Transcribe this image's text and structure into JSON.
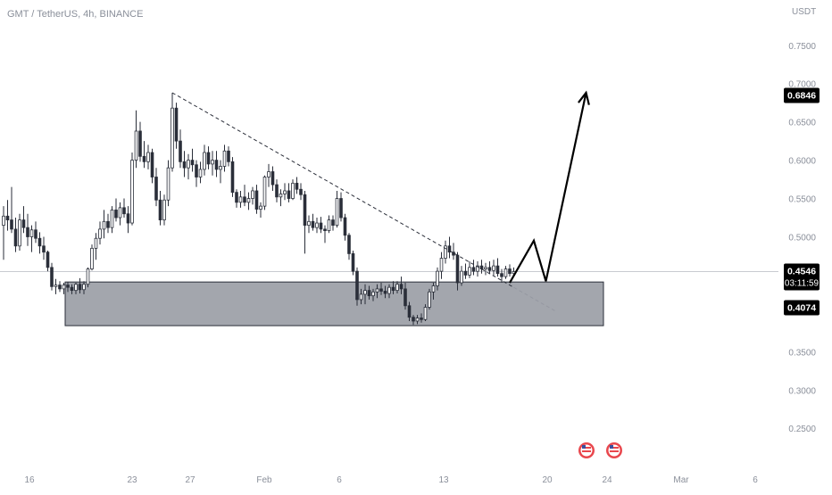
{
  "chart_data": {
    "type": "candlestick",
    "title": "GMT / TetherUS, 4h, BINANCE",
    "currency": "USDT",
    "y_ticks": [
      "0.2500",
      "0.3000",
      "0.3500",
      "0.5000",
      "0.5500",
      "0.6000",
      "0.6500",
      "0.7000",
      "0.7500"
    ],
    "y_tick_values": [
      0.25,
      0.3,
      0.35,
      0.5,
      0.55,
      0.6,
      0.65,
      0.7,
      0.75
    ],
    "x_ticks": [
      "16",
      "23",
      "27",
      "Feb",
      "6",
      "13",
      "20",
      "24",
      "Mar",
      "6"
    ],
    "ylim": [
      0.213,
      0.78
    ],
    "price_labels": {
      "target": {
        "text": "0.6846",
        "value": 0.6846
      },
      "current": {
        "text": "0.4546",
        "value": 0.4546,
        "countdown": "03:11:59"
      },
      "support": {
        "text": "0.4074",
        "value": 0.4074
      }
    },
    "support_zone": {
      "top": 0.441,
      "bottom": 0.384
    },
    "candles": [
      [
        0.515,
        0.54,
        0.47,
        0.527
      ],
      [
        0.527,
        0.548,
        0.508,
        0.522
      ],
      [
        0.522,
        0.565,
        0.505,
        0.51
      ],
      [
        0.51,
        0.525,
        0.48,
        0.488
      ],
      [
        0.488,
        0.53,
        0.482,
        0.522
      ],
      [
        0.522,
        0.54,
        0.505,
        0.512
      ],
      [
        0.512,
        0.53,
        0.488,
        0.5
      ],
      [
        0.5,
        0.515,
        0.48,
        0.509
      ],
      [
        0.509,
        0.52,
        0.492,
        0.498
      ],
      [
        0.498,
        0.506,
        0.478,
        0.488
      ],
      [
        0.488,
        0.5,
        0.47,
        0.48
      ],
      [
        0.48,
        0.482,
        0.455,
        0.46
      ],
      [
        0.46,
        0.466,
        0.43,
        0.435
      ],
      [
        0.435,
        0.445,
        0.425,
        0.437
      ],
      [
        0.437,
        0.442,
        0.428,
        0.432
      ],
      [
        0.432,
        0.44,
        0.425,
        0.437
      ],
      [
        0.437,
        0.441,
        0.428,
        0.434
      ],
      [
        0.434,
        0.438,
        0.425,
        0.43
      ],
      [
        0.43,
        0.44,
        0.425,
        0.438
      ],
      [
        0.438,
        0.446,
        0.426,
        0.431
      ],
      [
        0.431,
        0.442,
        0.425,
        0.438
      ],
      [
        0.438,
        0.46,
        0.434,
        0.458
      ],
      [
        0.458,
        0.49,
        0.456,
        0.485
      ],
      [
        0.485,
        0.505,
        0.47,
        0.498
      ],
      [
        0.498,
        0.52,
        0.49,
        0.51
      ],
      [
        0.51,
        0.535,
        0.498,
        0.52
      ],
      [
        0.52,
        0.53,
        0.505,
        0.512
      ],
      [
        0.512,
        0.54,
        0.505,
        0.535
      ],
      [
        0.535,
        0.55,
        0.52,
        0.525
      ],
      [
        0.525,
        0.545,
        0.515,
        0.538
      ],
      [
        0.538,
        0.55,
        0.525,
        0.53
      ],
      [
        0.53,
        0.54,
        0.505,
        0.518
      ],
      [
        0.518,
        0.61,
        0.515,
        0.6
      ],
      [
        0.6,
        0.665,
        0.59,
        0.638
      ],
      [
        0.638,
        0.65,
        0.598,
        0.605
      ],
      [
        0.605,
        0.625,
        0.59,
        0.598
      ],
      [
        0.598,
        0.62,
        0.588,
        0.61
      ],
      [
        0.61,
        0.615,
        0.57,
        0.578
      ],
      [
        0.578,
        0.59,
        0.54,
        0.548
      ],
      [
        0.548,
        0.56,
        0.515,
        0.522
      ],
      [
        0.522,
        0.555,
        0.515,
        0.548
      ],
      [
        0.548,
        0.6,
        0.54,
        0.59
      ],
      [
        0.59,
        0.688,
        0.585,
        0.668
      ],
      [
        0.668,
        0.675,
        0.615,
        0.625
      ],
      [
        0.625,
        0.64,
        0.59,
        0.598
      ],
      [
        0.598,
        0.612,
        0.578,
        0.59
      ],
      [
        0.59,
        0.608,
        0.575,
        0.6
      ],
      [
        0.6,
        0.615,
        0.585,
        0.594
      ],
      [
        0.594,
        0.6,
        0.565,
        0.578
      ],
      [
        0.578,
        0.598,
        0.57,
        0.588
      ],
      [
        0.588,
        0.62,
        0.58,
        0.61
      ],
      [
        0.61,
        0.618,
        0.588,
        0.595
      ],
      [
        0.595,
        0.612,
        0.58,
        0.6
      ],
      [
        0.6,
        0.612,
        0.578,
        0.588
      ],
      [
        0.588,
        0.6,
        0.57,
        0.592
      ],
      [
        0.592,
        0.62,
        0.585,
        0.612
      ],
      [
        0.612,
        0.618,
        0.592,
        0.598
      ],
      [
        0.598,
        0.604,
        0.552,
        0.558
      ],
      [
        0.558,
        0.562,
        0.538,
        0.545
      ],
      [
        0.545,
        0.56,
        0.538,
        0.552
      ],
      [
        0.552,
        0.568,
        0.54,
        0.545
      ],
      [
        0.545,
        0.558,
        0.535,
        0.55
      ],
      [
        0.55,
        0.565,
        0.542,
        0.56
      ],
      [
        0.56,
        0.568,
        0.53,
        0.536
      ],
      [
        0.536,
        0.545,
        0.525,
        0.54
      ],
      [
        0.54,
        0.58,
        0.535,
        0.578
      ],
      [
        0.578,
        0.595,
        0.565,
        0.585
      ],
      [
        0.585,
        0.592,
        0.56,
        0.568
      ],
      [
        0.568,
        0.575,
        0.545,
        0.552
      ],
      [
        0.552,
        0.562,
        0.54,
        0.556
      ],
      [
        0.556,
        0.57,
        0.548,
        0.56
      ],
      [
        0.56,
        0.57,
        0.545,
        0.55
      ],
      [
        0.55,
        0.575,
        0.548,
        0.57
      ],
      [
        0.57,
        0.578,
        0.556,
        0.562
      ],
      [
        0.562,
        0.57,
        0.548,
        0.555
      ],
      [
        0.555,
        0.56,
        0.478,
        0.515
      ],
      [
        0.515,
        0.528,
        0.505,
        0.52
      ],
      [
        0.52,
        0.53,
        0.508,
        0.512
      ],
      [
        0.512,
        0.525,
        0.505,
        0.518
      ],
      [
        0.518,
        0.526,
        0.505,
        0.51
      ],
      [
        0.51,
        0.515,
        0.492,
        0.508
      ],
      [
        0.508,
        0.528,
        0.505,
        0.522
      ],
      [
        0.522,
        0.528,
        0.508,
        0.515
      ],
      [
        0.515,
        0.56,
        0.512,
        0.55
      ],
      [
        0.55,
        0.558,
        0.52,
        0.525
      ],
      [
        0.525,
        0.53,
        0.495,
        0.502
      ],
      [
        0.502,
        0.505,
        0.47,
        0.478
      ],
      [
        0.478,
        0.482,
        0.45,
        0.455
      ],
      [
        0.455,
        0.46,
        0.41,
        0.418
      ],
      [
        0.418,
        0.432,
        0.412,
        0.425
      ],
      [
        0.425,
        0.438,
        0.412,
        0.43
      ],
      [
        0.43,
        0.436,
        0.418,
        0.423
      ],
      [
        0.423,
        0.432,
        0.416,
        0.428
      ],
      [
        0.428,
        0.438,
        0.42,
        0.432
      ],
      [
        0.432,
        0.44,
        0.424,
        0.429
      ],
      [
        0.429,
        0.436,
        0.42,
        0.426
      ],
      [
        0.426,
        0.438,
        0.42,
        0.434
      ],
      [
        0.434,
        0.442,
        0.425,
        0.43
      ],
      [
        0.43,
        0.442,
        0.426,
        0.438
      ],
      [
        0.438,
        0.448,
        0.425,
        0.432
      ],
      [
        0.432,
        0.44,
        0.405,
        0.41
      ],
      [
        0.41,
        0.415,
        0.39,
        0.395
      ],
      [
        0.395,
        0.398,
        0.385,
        0.39
      ],
      [
        0.39,
        0.398,
        0.386,
        0.394
      ],
      [
        0.394,
        0.4,
        0.388,
        0.392
      ],
      [
        0.392,
        0.412,
        0.39,
        0.408
      ],
      [
        0.408,
        0.432,
        0.405,
        0.428
      ],
      [
        0.428,
        0.44,
        0.418,
        0.436
      ],
      [
        0.436,
        0.46,
        0.43,
        0.455
      ],
      [
        0.455,
        0.48,
        0.445,
        0.472
      ],
      [
        0.472,
        0.495,
        0.465,
        0.488
      ],
      [
        0.488,
        0.5,
        0.472,
        0.48
      ],
      [
        0.48,
        0.492,
        0.47,
        0.476
      ],
      [
        0.476,
        0.48,
        0.43,
        0.44
      ],
      [
        0.44,
        0.462,
        0.436,
        0.455
      ],
      [
        0.455,
        0.465,
        0.445,
        0.45
      ],
      [
        0.45,
        0.468,
        0.446,
        0.46
      ],
      [
        0.46,
        0.47,
        0.45,
        0.455
      ],
      [
        0.455,
        0.468,
        0.448,
        0.462
      ],
      [
        0.462,
        0.47,
        0.452,
        0.458
      ],
      [
        0.458,
        0.466,
        0.45,
        0.46
      ],
      [
        0.46,
        0.468,
        0.452,
        0.456
      ],
      [
        0.456,
        0.47,
        0.45,
        0.462
      ],
      [
        0.462,
        0.472,
        0.448,
        0.452
      ],
      [
        0.452,
        0.458,
        0.44,
        0.448
      ],
      [
        0.448,
        0.462,
        0.445,
        0.458
      ],
      [
        0.458,
        0.464,
        0.448,
        0.452
      ],
      [
        0.452,
        0.46,
        0.448,
        0.4546
      ]
    ],
    "annotations": [
      {
        "type": "trendline",
        "style": "dashed",
        "from": {
          "candle": 42,
          "price": 0.688
        },
        "to": {
          "candle": 127,
          "price": 0.434
        }
      },
      {
        "type": "projection",
        "style": "solid",
        "arrow": true,
        "points": [
          {
            "candle": 126,
            "price": 0.44
          },
          {
            "candle": 132,
            "price": 0.495
          },
          {
            "candle": 135,
            "price": 0.442
          },
          {
            "candle": 145,
            "price": 0.688
          }
        ]
      }
    ]
  }
}
